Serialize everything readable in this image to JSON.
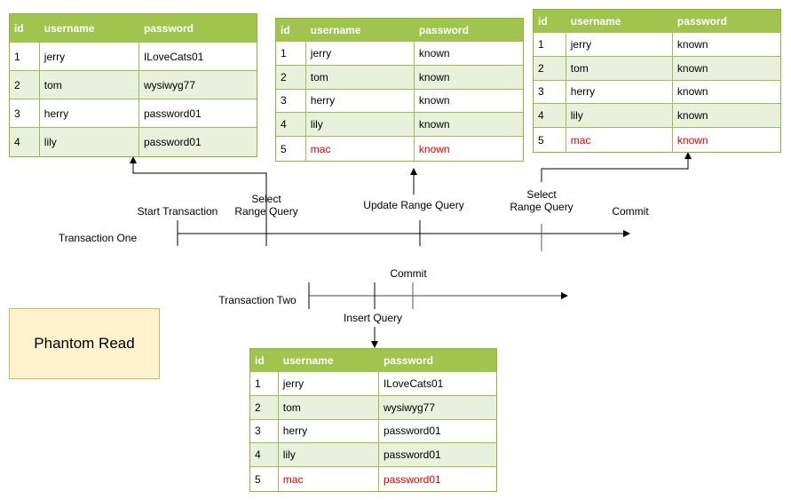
{
  "colors": {
    "header": "#a1c44e",
    "alt_row": "#e9f0dc",
    "border": "#8fb33f",
    "highlight": "#e00000",
    "note_fill": "#fff2cc",
    "note_border": "#d6b656"
  },
  "note": {
    "title": "Phantom Read"
  },
  "timeline_one": {
    "label": "Transaction One",
    "events": [
      "Start Transaction",
      "Select\nRange Query",
      "Update Range Query",
      "Select\nRange Query",
      "Commit"
    ]
  },
  "timeline_two": {
    "label": "Transaction Two",
    "events": [
      "Commit",
      "Insert Query"
    ]
  },
  "tables": [
    {
      "columns": [
        "id",
        "username",
        "password"
      ],
      "rows": [
        [
          "1",
          "jerry",
          "ILoveCats01"
        ],
        [
          "2",
          "tom",
          "wysiwyg77"
        ],
        [
          "3",
          "herry",
          "password01"
        ],
        [
          "4",
          "lily",
          "password01"
        ]
      ],
      "highlight_row": null
    },
    {
      "columns": [
        "id",
        "username",
        "password"
      ],
      "rows": [
        [
          "1",
          "jerry",
          "known"
        ],
        [
          "2",
          "tom",
          "known"
        ],
        [
          "3",
          "herry",
          "known"
        ],
        [
          "4",
          "lily",
          "known"
        ],
        [
          "5",
          "mac",
          "known"
        ]
      ],
      "highlight_row": 4
    },
    {
      "columns": [
        "id",
        "username",
        "password"
      ],
      "rows": [
        [
          "1",
          "jerry",
          "known"
        ],
        [
          "2",
          "tom",
          "known"
        ],
        [
          "3",
          "herry",
          "known"
        ],
        [
          "4",
          "lily",
          "known"
        ],
        [
          "5",
          "mac",
          "known"
        ]
      ],
      "highlight_row": 4
    },
    {
      "columns": [
        "id",
        "username",
        "password"
      ],
      "rows": [
        [
          "1",
          "jerry",
          "ILoveCats01"
        ],
        [
          "2",
          "tom",
          "wysiwyg77"
        ],
        [
          "3",
          "herry",
          "password01"
        ],
        [
          "4",
          "lily",
          "password01"
        ],
        [
          "5",
          "mac",
          "password01"
        ]
      ],
      "highlight_row": 4
    }
  ]
}
